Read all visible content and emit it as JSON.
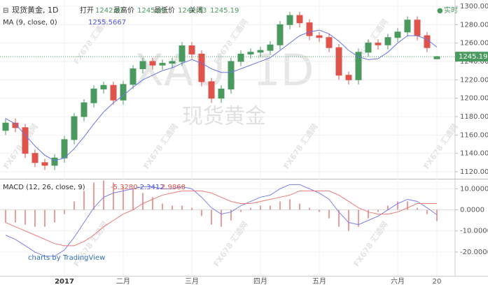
{
  "chart_data": [
    {
      "type": "candlestick",
      "title": "现货黄金, 1D",
      "ohlc_labels": [
        "打开",
        "最高价",
        "最低价",
        "关闭"
      ],
      "realtime": "实时",
      "categories": [
        null,
        null,
        null,
        null,
        null,
        null,
        "2017",
        null,
        null,
        null,
        null,
        null,
        "二月",
        null,
        null,
        null,
        null,
        null,
        null,
        "三月",
        null,
        null,
        null,
        null,
        null,
        null,
        "四月",
        null,
        null,
        null,
        null,
        null,
        "五月",
        null,
        null,
        null,
        null,
        null,
        null,
        null,
        "六月",
        null,
        null,
        null,
        "20"
      ],
      "open": [
        1165,
        1173,
        1168,
        1140,
        1130,
        1127,
        1135,
        1155,
        1180,
        1195,
        1210,
        1214,
        1198,
        1215,
        1232,
        1240,
        1236,
        1238,
        1240,
        1257,
        1248,
        1218,
        1200,
        1210,
        1240,
        1248,
        1250,
        1252,
        1258,
        1280,
        1290,
        1282,
        1268,
        1266,
        1255,
        1225,
        1220,
        1250,
        1260,
        1258,
        1266,
        1272,
        1285,
        1268,
        1242.83
      ],
      "high": [
        1178,
        1178,
        1172,
        1144,
        1134,
        1139,
        1159,
        1184,
        1199,
        1214,
        1218,
        1218,
        1219,
        1236,
        1244,
        1244,
        1242,
        1244,
        1261,
        1261,
        1252,
        1222,
        1214,
        1244,
        1252,
        1254,
        1256,
        1262,
        1284,
        1294,
        1294,
        1286,
        1272,
        1270,
        1259,
        1229,
        1254,
        1264,
        1264,
        1270,
        1276,
        1289,
        1289,
        1272,
        1245.89
      ],
      "low": [
        1160,
        1163,
        1135,
        1125,
        1122,
        1122,
        1130,
        1150,
        1175,
        1190,
        1205,
        1193,
        1193,
        1210,
        1227,
        1231,
        1231,
        1233,
        1235,
        1243,
        1213,
        1195,
        1195,
        1205,
        1235,
        1243,
        1245,
        1247,
        1253,
        1275,
        1277,
        1263,
        1261,
        1250,
        1220,
        1215,
        1215,
        1245,
        1253,
        1253,
        1261,
        1267,
        1263,
        1250,
        1242.83
      ],
      "close": [
        1173,
        1168,
        1140,
        1130,
        1127,
        1135,
        1155,
        1180,
        1195,
        1210,
        1214,
        1198,
        1215,
        1232,
        1240,
        1236,
        1238,
        1240,
        1257,
        1248,
        1218,
        1200,
        1210,
        1240,
        1248,
        1250,
        1252,
        1258,
        1280,
        1290,
        1282,
        1268,
        1266,
        1255,
        1225,
        1220,
        1250,
        1260,
        1258,
        1266,
        1272,
        1285,
        1268,
        1255,
        1245.19
      ],
      "up_color": "#4a9a5f",
      "down_color": "#e0534a",
      "ma": {
        "name": "MA (9, close, 0)",
        "color": "#6a76e8",
        "values": [
          1178,
          1172,
          1160,
          1148,
          1138,
          1132,
          1135,
          1145,
          1158,
          1172,
          1185,
          1195,
          1203,
          1212,
          1220,
          1225,
          1230,
          1233,
          1238,
          1242,
          1238,
          1232,
          1228,
          1228,
          1232,
          1236,
          1240,
          1244,
          1252,
          1260,
          1268,
          1272,
          1274,
          1270,
          1262,
          1252,
          1245,
          1242,
          1243,
          1250,
          1260,
          1268,
          1268,
          1264,
          1255.5667
        ]
      },
      "ylim": [
        1112.4,
        1306.8
      ],
      "yticks": [
        {
          "value": 1120,
          "label": "1120.00"
        },
        {
          "value": 1140,
          "label": "1140.00"
        },
        {
          "value": 1160,
          "label": "1160.00"
        },
        {
          "value": 1180,
          "label": "1180.00"
        },
        {
          "value": 1200,
          "label": "1200.00"
        },
        {
          "value": 1220,
          "label": "1220.00"
        },
        {
          "value": 1240,
          "label": "1240.00"
        },
        {
          "value": 1260,
          "label": "1260.00"
        },
        {
          "value": 1280,
          "label": "1280.00"
        },
        {
          "value": 1300,
          "label": "1300.00"
        }
      ],
      "grid": true
    },
    {
      "type": "macd",
      "title": "MACD (12, 26, close, 9)",
      "legend_values": [
        "-5.3280",
        "-2.3412",
        "2.9868"
      ],
      "series": [
        {
          "name": "histogram",
          "color": "#f19a9a",
          "values": [
            -6,
            -6,
            -7,
            -8,
            -8,
            -6,
            -2,
            4,
            9,
            13,
            14,
            13,
            11,
            10,
            8,
            6,
            3,
            2,
            2,
            1,
            -3,
            -7,
            -8,
            -5,
            -1,
            1,
            2,
            2,
            4,
            5,
            3,
            1,
            -1,
            -4,
            -8,
            -10,
            -8,
            -4,
            -1,
            2,
            4,
            4,
            1,
            -2,
            -5.328
          ]
        },
        {
          "name": "macd",
          "color": "#7b7fee",
          "values": [
            -12,
            -14,
            -17,
            -20,
            -22,
            -22,
            -19,
            -13,
            -6,
            1,
            6,
            8,
            9,
            10,
            11,
            11,
            10,
            10,
            11,
            10,
            6,
            1,
            -2,
            -1,
            2,
            4,
            6,
            7,
            10,
            12,
            12,
            10,
            8,
            5,
            -1,
            -6,
            -7,
            -5,
            -3,
            0,
            3,
            5,
            4,
            1,
            -2.3412
          ]
        },
        {
          "name": "signal",
          "color": "#f07878",
          "values": [
            -6,
            -8,
            -10,
            -12,
            -14,
            -16,
            -17,
            -17,
            -15,
            -12,
            -8,
            -5,
            -2,
            0,
            3,
            5,
            7,
            8,
            9,
            9,
            9,
            8,
            6,
            4,
            3,
            3,
            4,
            5,
            6,
            7,
            9,
            9,
            9,
            9,
            7,
            4,
            1,
            -1,
            -2,
            -2,
            -1,
            1,
            3,
            3,
            2.9868
          ]
        }
      ],
      "ylim": [
        -31.3,
        14.1
      ],
      "yticks": [
        {
          "value": 10,
          "label": "10.0000"
        },
        {
          "value": 0,
          "label": "0.0000"
        },
        {
          "value": -10,
          "label": "-10.0000"
        },
        {
          "value": -20,
          "label": "-20.0000"
        }
      ]
    }
  ],
  "watermark_symbol": "XAU, 1D",
  "watermark_name": "现货黄金",
  "watermark_brand": "FX678 汇通网",
  "branding": "charts by TradingView"
}
